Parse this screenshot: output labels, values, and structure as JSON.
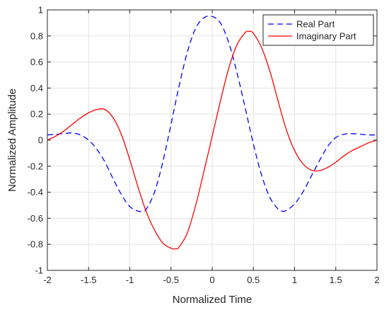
{
  "chart_data": {
    "type": "line",
    "xlabel": "Normalized Time",
    "ylabel": "Normalized Amplitude",
    "xlim": [
      -2,
      2
    ],
    "ylim": [
      -1,
      1
    ],
    "xticks": [
      -2,
      -1.5,
      -1,
      -0.5,
      0,
      0.5,
      1,
      1.5,
      2
    ],
    "xtick_labels": [
      "-2",
      "-1.5",
      "-1",
      "-0.5",
      "0",
      "0.5",
      "1",
      "1.5",
      "2"
    ],
    "yticks": [
      -1,
      -0.8,
      -0.6,
      -0.4,
      -0.2,
      0,
      0.2,
      0.4,
      0.6,
      0.8,
      1
    ],
    "ytick_labels": [
      "-1",
      "-0.8",
      "-0.6",
      "-0.4",
      "-0.2",
      "0",
      "0.2",
      "0.4",
      "0.6",
      "0.8",
      "1"
    ],
    "grid": true,
    "legend_position": "top-right",
    "series": [
      {
        "name": "Real Part",
        "color": "#0000ff",
        "style": "dashed",
        "x": [
          -2,
          -1.9,
          -1.8,
          -1.7,
          -1.6,
          -1.5,
          -1.4,
          -1.3,
          -1.2,
          -1.1,
          -1.0,
          -0.9,
          -0.85,
          -0.8,
          -0.7,
          -0.6,
          -0.5,
          -0.4,
          -0.3,
          -0.2,
          -0.1,
          0,
          0.1,
          0.2,
          0.3,
          0.4,
          0.5,
          0.6,
          0.7,
          0.8,
          0.85,
          0.9,
          1.0,
          1.1,
          1.2,
          1.3,
          1.4,
          1.5,
          1.6,
          1.7,
          1.8,
          1.9,
          2
        ],
        "y": [
          0.04,
          0.045,
          0.05,
          0.055,
          0.04,
          0.0,
          -0.07,
          -0.17,
          -0.3,
          -0.42,
          -0.51,
          -0.545,
          -0.545,
          -0.53,
          -0.4,
          -0.17,
          0.12,
          0.42,
          0.68,
          0.86,
          0.94,
          0.95,
          0.9,
          0.75,
          0.52,
          0.25,
          -0.03,
          -0.27,
          -0.44,
          -0.53,
          -0.545,
          -0.54,
          -0.49,
          -0.4,
          -0.28,
          -0.16,
          -0.05,
          0.02,
          0.045,
          0.05,
          0.045,
          0.04,
          0.04
        ]
      },
      {
        "name": "Imaginary Part",
        "color": "#ff0000",
        "style": "solid",
        "x": [
          -2,
          -1.9,
          -1.8,
          -1.7,
          -1.6,
          -1.5,
          -1.4,
          -1.3,
          -1.2,
          -1.1,
          -1.0,
          -0.9,
          -0.8,
          -0.7,
          -0.6,
          -0.5,
          -0.45,
          -0.4,
          -0.3,
          -0.2,
          -0.1,
          0,
          0.1,
          0.2,
          0.3,
          0.4,
          0.45,
          0.5,
          0.6,
          0.7,
          0.8,
          0.9,
          1.0,
          1.1,
          1.2,
          1.3,
          1.4,
          1.5,
          1.6,
          1.7,
          1.8,
          1.9,
          2
        ],
        "y": [
          0.0,
          0.03,
          0.07,
          0.12,
          0.17,
          0.21,
          0.235,
          0.235,
          0.17,
          0.04,
          -0.15,
          -0.36,
          -0.55,
          -0.69,
          -0.79,
          -0.83,
          -0.835,
          -0.82,
          -0.71,
          -0.5,
          -0.24,
          0.03,
          0.3,
          0.55,
          0.73,
          0.825,
          0.835,
          0.82,
          0.71,
          0.53,
          0.3,
          0.08,
          -0.08,
          -0.18,
          -0.23,
          -0.235,
          -0.21,
          -0.17,
          -0.12,
          -0.08,
          -0.05,
          -0.02,
          0.0
        ]
      }
    ]
  }
}
